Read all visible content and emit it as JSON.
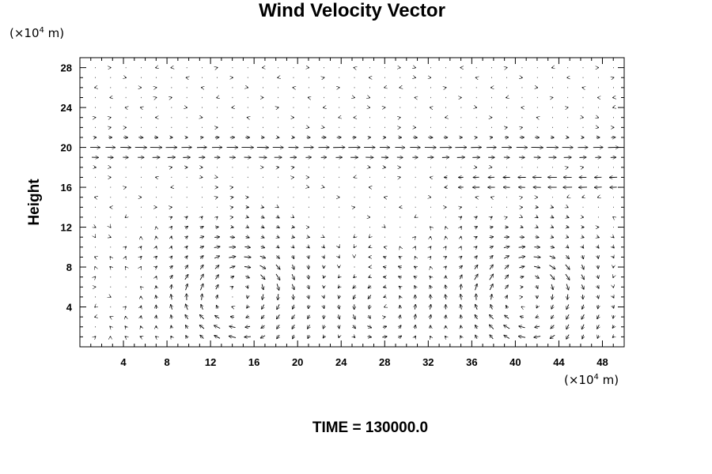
{
  "chart_data": {
    "type": "vector-field",
    "title": "Wind Velocity Vector",
    "ylabel": "Height",
    "xlabel": "",
    "x_unit": {
      "prefix": "(×10",
      "exponent": "4",
      "suffix": " m)"
    },
    "y_unit": {
      "prefix": "(×10",
      "exponent": "4",
      "suffix": " m)"
    },
    "footer": "TIME = 130000.0",
    "xlim": [
      0,
      50
    ],
    "ylim": [
      0,
      29
    ],
    "x_ticks": [
      4,
      8,
      12,
      16,
      20,
      24,
      28,
      32,
      36,
      40,
      44,
      48
    ],
    "y_ticks": [
      4,
      8,
      12,
      16,
      20,
      24,
      28
    ],
    "grid": false,
    "arrow_color": "#000000",
    "field": {
      "nx": 36,
      "ny": 29,
      "dx": 1.4,
      "dy": 1.0,
      "upper_jet": {
        "center_y": 19.8,
        "speed": 1.0
      },
      "mid_jet": {
        "center_y": 16.5,
        "x_start": 35,
        "speed": -1.0
      },
      "vortices": [
        {
          "x": 14.5,
          "y": 5.0,
          "radius": 5.5,
          "sense": "clockwise"
        },
        {
          "x": 28.0,
          "y": 4.0,
          "radius": 3.5,
          "sense": "counterclockwise"
        },
        {
          "x": 41.0,
          "y": 4.8,
          "radius": 5.5,
          "sense": "clockwise"
        }
      ]
    }
  }
}
